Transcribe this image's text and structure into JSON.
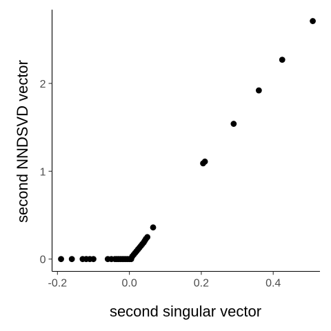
{
  "chart_data": {
    "type": "scatter",
    "title": "",
    "xlabel": "second singular vector",
    "ylabel": "second NNDSVD vector",
    "xlim": [
      -0.215,
      0.53
    ],
    "ylim": [
      -0.14,
      2.84
    ],
    "x_ticks": [
      -0.2,
      0.0,
      0.2,
      0.4
    ],
    "x_tick_labels": [
      "-0.2",
      "0.0",
      "0.2",
      "0.4"
    ],
    "y_ticks": [
      0,
      1,
      2
    ],
    "y_tick_labels": [
      "0",
      "1",
      "2"
    ],
    "grid": false,
    "legend": "none",
    "point_color": "#000000",
    "points": [
      {
        "x": -0.19,
        "y": 0.0
      },
      {
        "x": -0.16,
        "y": 0.0
      },
      {
        "x": -0.13,
        "y": 0.0
      },
      {
        "x": -0.12,
        "y": 0.0
      },
      {
        "x": -0.11,
        "y": 0.0
      },
      {
        "x": -0.1,
        "y": 0.0
      },
      {
        "x": -0.06,
        "y": 0.0
      },
      {
        "x": -0.05,
        "y": 0.0
      },
      {
        "x": -0.04,
        "y": 0.0
      },
      {
        "x": -0.035,
        "y": 0.0
      },
      {
        "x": -0.03,
        "y": 0.0
      },
      {
        "x": -0.025,
        "y": 0.0
      },
      {
        "x": -0.02,
        "y": 0.0
      },
      {
        "x": -0.015,
        "y": 0.0
      },
      {
        "x": -0.01,
        "y": 0.0
      },
      {
        "x": -0.005,
        "y": 0.0
      },
      {
        "x": 0.0,
        "y": 0.0
      },
      {
        "x": 0.005,
        "y": 0.0
      },
      {
        "x": 0.008,
        "y": 0.03
      },
      {
        "x": 0.012,
        "y": 0.05
      },
      {
        "x": 0.016,
        "y": 0.07
      },
      {
        "x": 0.02,
        "y": 0.09
      },
      {
        "x": 0.024,
        "y": 0.11
      },
      {
        "x": 0.028,
        "y": 0.13
      },
      {
        "x": 0.032,
        "y": 0.15
      },
      {
        "x": 0.036,
        "y": 0.17
      },
      {
        "x": 0.04,
        "y": 0.19
      },
      {
        "x": 0.043,
        "y": 0.21
      },
      {
        "x": 0.046,
        "y": 0.23
      },
      {
        "x": 0.05,
        "y": 0.25
      },
      {
        "x": 0.066,
        "y": 0.36
      },
      {
        "x": 0.205,
        "y": 1.09
      },
      {
        "x": 0.21,
        "y": 1.11
      },
      {
        "x": 0.29,
        "y": 1.54
      },
      {
        "x": 0.36,
        "y": 1.92
      },
      {
        "x": 0.425,
        "y": 2.27
      },
      {
        "x": 0.51,
        "y": 2.71
      }
    ]
  }
}
